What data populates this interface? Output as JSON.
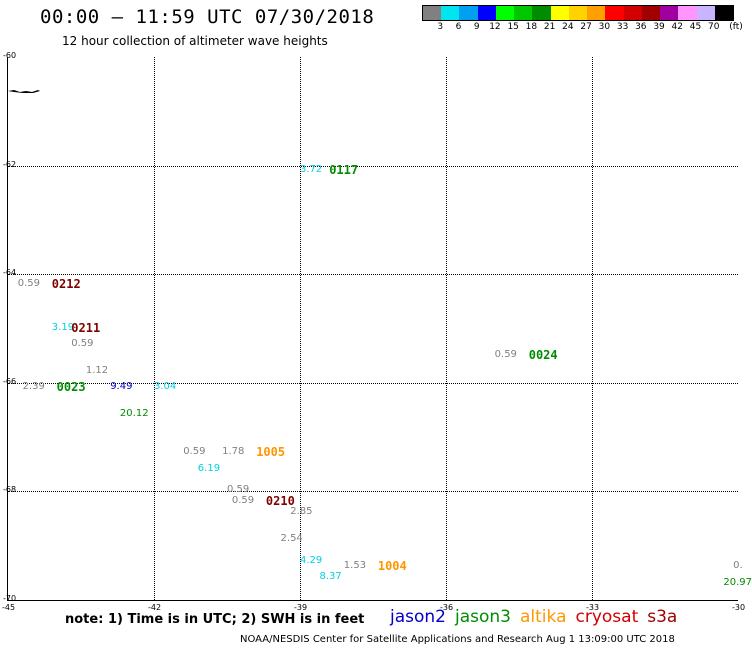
{
  "header": {
    "title": "00:00 – 11:59 UTC 07/30/2018",
    "subtitle": "12 hour collection of altimeter wave heights"
  },
  "color_legend": {
    "swatches": [
      "#808080",
      "#00e5ee",
      "#00a0f0",
      "#0000ff",
      "#00ff00",
      "#00c800",
      "#008c00",
      "#ffff00",
      "#ffd200",
      "#ffa000",
      "#ff0000",
      "#d20000",
      "#a00000",
      "#a000a0",
      "#ff96ff",
      "#c8b4ff",
      "#000000"
    ],
    "labels": [
      "3",
      "6",
      "9",
      "12",
      "15",
      "18",
      "21",
      "24",
      "27",
      "30",
      "33",
      "36",
      "39",
      "42",
      "45",
      "70",
      "(ft)"
    ]
  },
  "axes": {
    "y_labels": [
      "-60",
      "-62",
      "-64",
      "-66",
      "-68",
      "-70"
    ],
    "x_labels": [
      "-45",
      "-42",
      "-39",
      "-36",
      "-33",
      "-30"
    ]
  },
  "chart_data": {
    "type": "scatter",
    "x_range": [
      -45,
      -30
    ],
    "y_range": [
      -70,
      -60
    ],
    "passes": [
      {
        "label": "0117",
        "lon": -38.4,
        "lat": -62.1,
        "color": "#008c00"
      },
      {
        "label": "0212",
        "lon": -44.1,
        "lat": -64.2,
        "color": "#800000"
      },
      {
        "label": "0211",
        "lon": -43.7,
        "lat": -65.0,
        "color": "#800000"
      },
      {
        "label": "0024",
        "lon": -34.3,
        "lat": -65.5,
        "color": "#008c00"
      },
      {
        "label": "0023",
        "lon": -44.0,
        "lat": -66.1,
        "color": "#008c00"
      },
      {
        "label": "1005",
        "lon": -39.9,
        "lat": -67.3,
        "color": "#ff9600"
      },
      {
        "label": "0210",
        "lon": -39.7,
        "lat": -68.2,
        "color": "#800000"
      },
      {
        "label": "1004",
        "lon": -37.4,
        "lat": -69.4,
        "color": "#ff9600"
      }
    ],
    "measurements": [
      {
        "value": "3.72",
        "lon": -39.0,
        "lat": -62.1,
        "color": "#00d0e0"
      },
      {
        "value": "0.59",
        "lon": -44.8,
        "lat": -64.2,
        "color": "#808080"
      },
      {
        "value": "3.19",
        "lon": -44.1,
        "lat": -65.0,
        "color": "#00d0e0"
      },
      {
        "value": "0.59",
        "lon": -43.7,
        "lat": -65.3,
        "color": "#808080"
      },
      {
        "value": "1.12",
        "lon": -43.4,
        "lat": -65.8,
        "color": "#808080"
      },
      {
        "value": "0.59",
        "lon": -35.0,
        "lat": -65.5,
        "color": "#808080"
      },
      {
        "value": "2.39",
        "lon": -44.7,
        "lat": -66.1,
        "color": "#808080"
      },
      {
        "value": "9.49",
        "lon": -42.9,
        "lat": -66.1,
        "color": "#0000c8"
      },
      {
        "value": "3.04",
        "lon": -42.0,
        "lat": -66.1,
        "color": "#00d0e0"
      },
      {
        "value": "20.12",
        "lon": -42.7,
        "lat": -66.6,
        "color": "#008c00"
      },
      {
        "value": "0.59",
        "lon": -41.4,
        "lat": -67.3,
        "color": "#808080"
      },
      {
        "value": "1.78",
        "lon": -40.6,
        "lat": -67.3,
        "color": "#808080"
      },
      {
        "value": "6.19",
        "lon": -41.1,
        "lat": -67.6,
        "color": "#00d0e0"
      },
      {
        "value": "0.59",
        "lon": -40.5,
        "lat": -68.0,
        "color": "#808080"
      },
      {
        "value": "0.59",
        "lon": -40.4,
        "lat": -68.2,
        "color": "#808080"
      },
      {
        "value": "2.85",
        "lon": -39.2,
        "lat": -68.4,
        "color": "#808080"
      },
      {
        "value": "2.54",
        "lon": -39.4,
        "lat": -68.9,
        "color": "#808080"
      },
      {
        "value": "4.29",
        "lon": -39.0,
        "lat": -69.3,
        "color": "#00d0e0"
      },
      {
        "value": "1.53",
        "lon": -38.1,
        "lat": -69.4,
        "color": "#808080"
      },
      {
        "value": "8.37",
        "lon": -38.6,
        "lat": -69.6,
        "color": "#00d0e0"
      },
      {
        "value": "0.",
        "lon": -30.1,
        "lat": -69.4,
        "color": "#808080"
      },
      {
        "value": "20.97",
        "lon": -30.3,
        "lat": -69.7,
        "color": "#008c00"
      }
    ]
  },
  "note": "note: 1) Time is in UTC; 2) SWH is in feet",
  "satellites": [
    {
      "name": "jason2",
      "color": "#0000c8"
    },
    {
      "name": "jason3",
      "color": "#008c00"
    },
    {
      "name": "altika",
      "color": "#ff9600"
    },
    {
      "name": "cryosat",
      "color": "#d20000"
    },
    {
      "name": "s3a",
      "color": "#a00000"
    }
  ],
  "footer": "NOAA/NESDIS Center for Satellite Applications and Research    Aug  1 13:09:00 UTC 2018"
}
